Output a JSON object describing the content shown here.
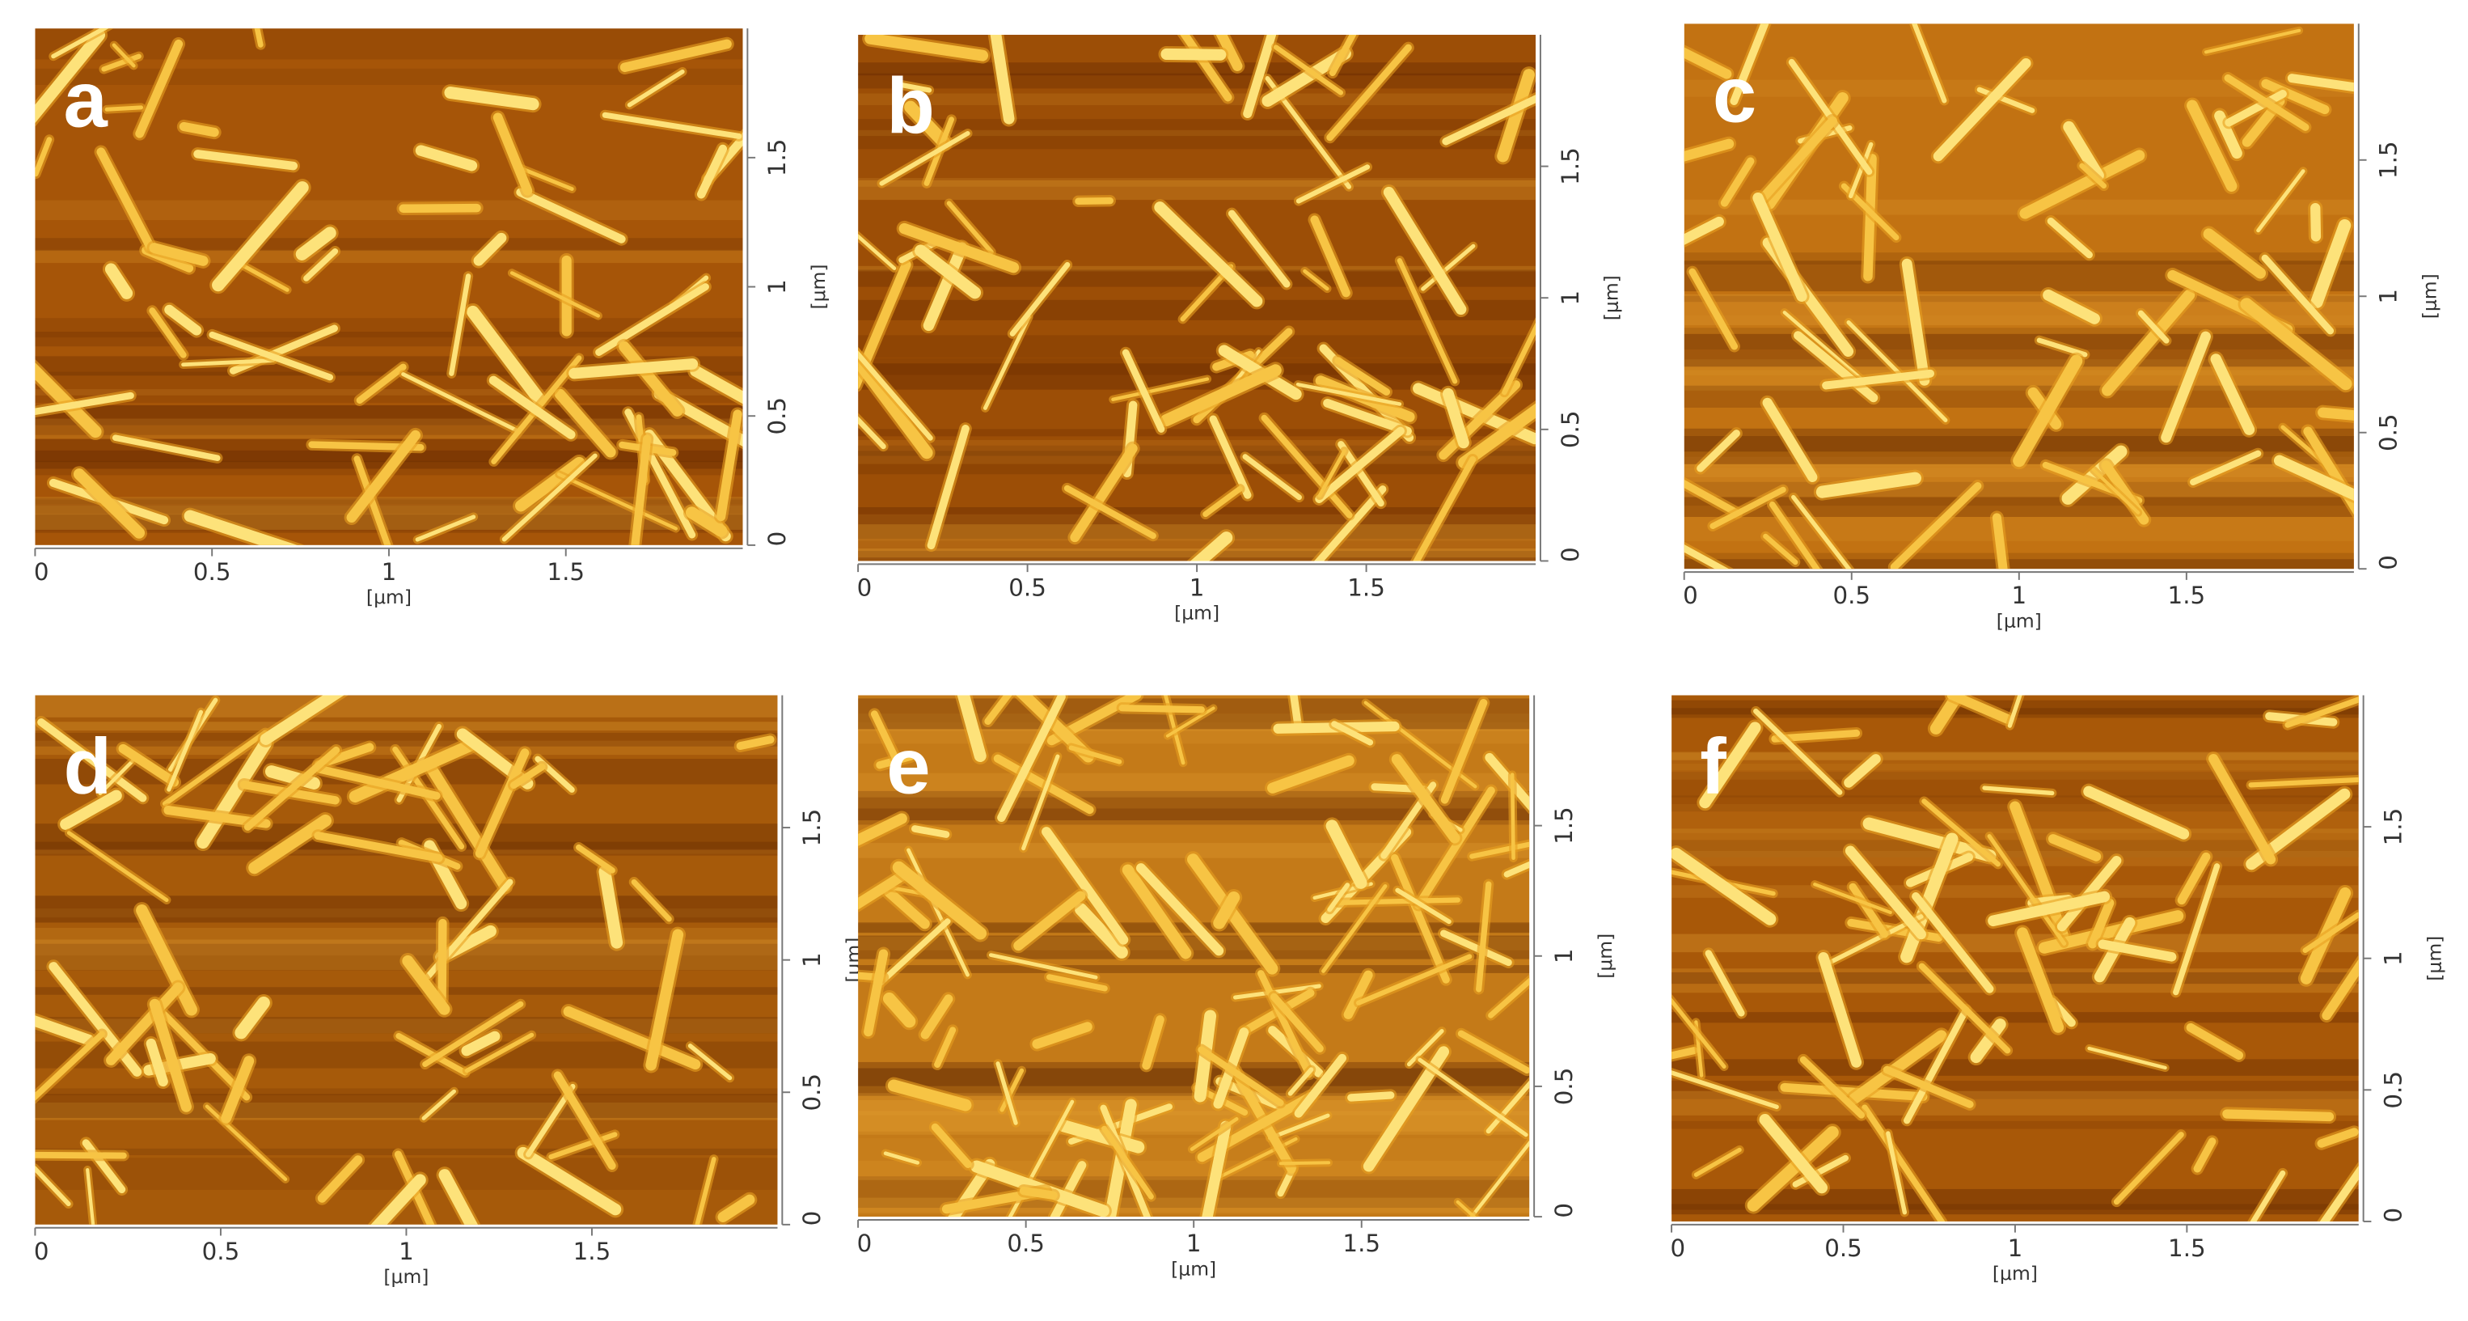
{
  "panels": [
    {
      "label": "a",
      "xticks": [
        "0",
        "0.5",
        "1",
        "1.5"
      ],
      "xlabel": "[μm]",
      "yticks": [
        "0",
        "0.5",
        "1",
        "1.5"
      ],
      "ylabel": "[μm]"
    },
    {
      "label": "b",
      "xticks": [
        "0",
        "0.5",
        "1",
        "1.5"
      ],
      "xlabel": "[μm]",
      "yticks": [
        "0",
        "0.5",
        "1",
        "1.5"
      ],
      "ylabel": "[μm]"
    },
    {
      "label": "c",
      "xticks": [
        "0",
        "0.5",
        "1",
        "1.5"
      ],
      "xlabel": "[μm]",
      "yticks": [
        "0",
        "0.5",
        "1",
        "1.5"
      ],
      "ylabel": "[μm]"
    },
    {
      "label": "d",
      "xticks": [
        "0",
        "0.5",
        "1",
        "1.5"
      ],
      "xlabel": "[μm]",
      "yticks": [
        "0",
        "0.5",
        "1",
        "1.5"
      ],
      "ylabel": "[μm]"
    },
    {
      "label": "e",
      "xticks": [
        "0",
        "0.5",
        "1",
        "1.5"
      ],
      "xlabel": "[μm]",
      "yticks": [
        "0",
        "0.5",
        "1",
        "1.5"
      ],
      "ylabel": "[μm]"
    },
    {
      "label": "f",
      "xticks": [
        "0",
        "0.5",
        "1",
        "1.5"
      ],
      "xlabel": "[μm]",
      "yticks": [
        "0",
        "0.5",
        "1",
        "1.5"
      ],
      "ylabel": "[μm]"
    }
  ]
}
